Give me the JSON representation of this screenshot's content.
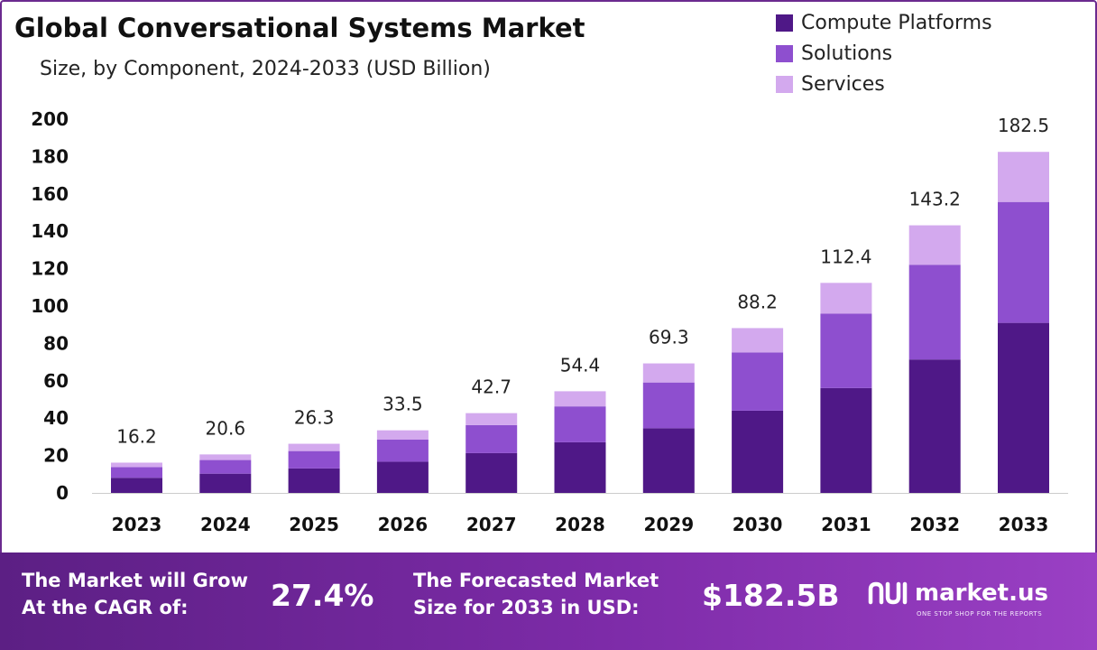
{
  "chart_data": {
    "type": "bar",
    "stacked": true,
    "title": "Global Conversational Systems Market",
    "subtitle": "Size, by Component, 2024-2033 (USD Billion)",
    "categories": [
      "2023",
      "2024",
      "2025",
      "2026",
      "2027",
      "2028",
      "2029",
      "2030",
      "2031",
      "2032",
      "2033"
    ],
    "series": [
      {
        "name": "Compute Platforms",
        "color": "#4f1887",
        "values": [
          8.1,
          10.3,
          13.1,
          16.7,
          21.3,
          27.1,
          34.6,
          44.0,
          56.1,
          71.4,
          91.0
        ]
      },
      {
        "name": "Solutions",
        "color": "#8e4fcf",
        "values": [
          5.7,
          7.3,
          9.3,
          11.8,
          15.0,
          19.2,
          24.5,
          31.2,
          39.8,
          50.7,
          64.7
        ]
      },
      {
        "name": "Services",
        "color": "#d3a9ee",
        "values": [
          2.4,
          3.0,
          3.9,
          5.0,
          6.4,
          8.1,
          10.2,
          13.0,
          16.5,
          21.1,
          26.8
        ]
      }
    ],
    "totals": [
      16.2,
      20.6,
      26.3,
      33.5,
      42.7,
      54.4,
      69.3,
      88.2,
      112.4,
      143.2,
      182.5
    ],
    "total_labels": [
      "16.2",
      "20.6",
      "26.3",
      "33.5",
      "42.7",
      "54.4",
      "69.3",
      "88.2",
      "112.4",
      "143.2",
      "182.5"
    ],
    "y_ticks": [
      "0",
      "20",
      "40",
      "60",
      "80",
      "100",
      "120",
      "140",
      "160",
      "180",
      "200"
    ],
    "ylim": [
      0,
      200
    ],
    "grid": false,
    "legend_position": "top-right"
  },
  "footer": {
    "cagr_line1": "The Market will Grow",
    "cagr_line2": "At the CAGR of:",
    "cagr_value": "27.4%",
    "forecast_line1": "The Forecasted Market",
    "forecast_line2": "Size for 2033 in USD:",
    "forecast_value": "$182.5B",
    "brand_name": "market.us",
    "brand_tagline": "ONE STOP SHOP FOR THE REPORTS"
  },
  "colors": {
    "footer_bg": "#6b2a8f",
    "axis": "#cccccc"
  }
}
